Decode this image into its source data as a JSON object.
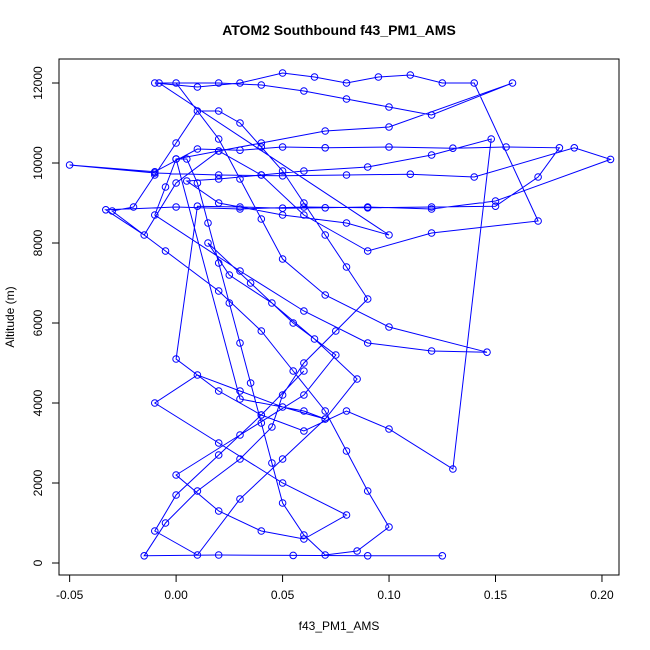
{
  "chart_data": {
    "type": "line",
    "title": "ATOM2 Southbound f43_PM1_AMS",
    "xlabel": "f43_PM1_AMS",
    "ylabel": "Altitude (m)",
    "xlim": [
      -0.055,
      0.208
    ],
    "ylim": [
      -300,
      12600
    ],
    "xticks": [
      -0.05,
      0.0,
      0.05,
      0.1,
      0.15,
      0.2
    ],
    "xtick_labels": [
      "-0.05",
      "0.00",
      "0.05",
      "0.10",
      "0.15",
      "0.20"
    ],
    "yticks": [
      0,
      2000,
      4000,
      6000,
      8000,
      10000,
      12000
    ],
    "ytick_labels": [
      "0",
      "2000",
      "4000",
      "6000",
      "8000",
      "10000",
      "12000"
    ],
    "color": "#0000ff",
    "marker": "open-circle",
    "grid": false,
    "series": [
      {
        "x": [
          0.125,
          0.09,
          0.055,
          0.02,
          -0.015,
          -0.005,
          0.01,
          0.03,
          0.045,
          0.05,
          0.06,
          0.075,
          0.09,
          0.08,
          0.07,
          0.06,
          0.05,
          0.04,
          0.03,
          0.02,
          0.01,
          0.0,
          -0.01,
          -0.02,
          -0.03,
          -0.005,
          0.02,
          0.04,
          0.055,
          0.07,
          0.08,
          0.09,
          0.1,
          0.085,
          0.07,
          0.06,
          0.05,
          0.045,
          0.04,
          0.035,
          0.03,
          0.025,
          0.02,
          0.015,
          0.01,
          0.005,
          0.0,
          -0.005,
          -0.01,
          0.03,
          0.06,
          0.09,
          0.12,
          0.146,
          0.1,
          0.07,
          0.05,
          0.04,
          0.03,
          0.02,
          0.0,
          -0.01,
          0.01,
          0.03,
          0.05,
          0.065,
          0.08,
          0.095,
          0.11,
          0.125,
          0.14,
          0.17,
          0.12,
          0.09,
          0.06,
          0.04,
          0.02,
          0.0,
          -0.015,
          -0.033,
          0.0,
          0.03,
          0.06,
          0.09,
          0.12,
          0.15,
          0.17,
          0.18,
          0.155,
          0.13,
          0.1,
          0.07,
          0.05,
          0.03,
          0.01,
          -0.01,
          -0.05,
          -0.01,
          0.02,
          0.05,
          0.08,
          0.11,
          0.14,
          0.187,
          0.204,
          0.15,
          0.12,
          0.09,
          0.07,
          0.05,
          0.03,
          0.01,
          0.0,
          0.02,
          0.04,
          0.06,
          0.08,
          0.1,
          0.13,
          0.148,
          0.12,
          0.09,
          0.06,
          0.04,
          0.02,
          0.005,
          0.02,
          0.05,
          0.08,
          0.1,
          -0.008,
          0.02,
          0.04,
          0.06,
          0.08,
          0.1,
          0.12,
          0.158,
          0.1,
          0.07,
          0.04,
          0.02,
          0.0,
          0.03,
          0.06,
          0.07,
          0.05,
          0.03,
          0.01,
          -0.01,
          0.02,
          0.05,
          0.08,
          0.06,
          0.04,
          0.02,
          0.0,
          0.03,
          0.06,
          0.075,
          0.055,
          0.035,
          0.015,
          0.025,
          0.045,
          0.065,
          0.085,
          0.07,
          0.05,
          0.03,
          0.01,
          -0.01,
          0.0,
          0.02,
          0.04,
          0.06
        ],
        "y": [
          180,
          180,
          190,
          200,
          180,
          1000,
          1800,
          2600,
          3400,
          4200,
          5000,
          5800,
          6600,
          7400,
          8200,
          9000,
          9800,
          10400,
          11000,
          11300,
          11300,
          10500,
          9700,
          8900,
          8800,
          7800,
          6800,
          5800,
          4800,
          3800,
          2800,
          1800,
          900,
          300,
          200,
          700,
          1500,
          2500,
          3500,
          4500,
          5500,
          6500,
          7500,
          8500,
          9500,
          10100,
          10100,
          9400,
          8700,
          7300,
          6300,
          5500,
          5300,
          5270,
          5900,
          6700,
          7600,
          8600,
          9600,
          10600,
          12000,
          12000,
          11900,
          12000,
          12250,
          12150,
          12000,
          12150,
          12200,
          12000,
          12000,
          8550,
          8250,
          7800,
          8700,
          9700,
          10300,
          9500,
          8200,
          8830,
          8900,
          8850,
          8900,
          8880,
          8900,
          8920,
          9650,
          10380,
          10400,
          10370,
          10400,
          10380,
          10400,
          10320,
          10350,
          9780,
          9950,
          9750,
          9700,
          9680,
          9700,
          9720,
          9650,
          10380,
          10090,
          9050,
          8850,
          8900,
          8880,
          8870,
          8900,
          8920,
          5100,
          4300,
          3700,
          3300,
          3800,
          3350,
          2350,
          10600,
          10200,
          9900,
          9800,
          9700,
          9600,
          9550,
          9000,
          8700,
          8500,
          8200,
          12000,
          12000,
          11950,
          11800,
          11600,
          11400,
          11200,
          12000,
          10900,
          10800,
          10500,
          10300,
          10100,
          4100,
          3800,
          3600,
          3900,
          4300,
          4700,
          4000,
          3000,
          2000,
          1200,
          600,
          800,
          1300,
          2200,
          3200,
          4200,
          5200,
          6000,
          7000,
          8000,
          7200,
          6500,
          5600,
          4600,
          3600,
          2600,
          1600,
          200,
          800,
          1700,
          2700,
          3700,
          4800
        ]
      }
    ]
  }
}
